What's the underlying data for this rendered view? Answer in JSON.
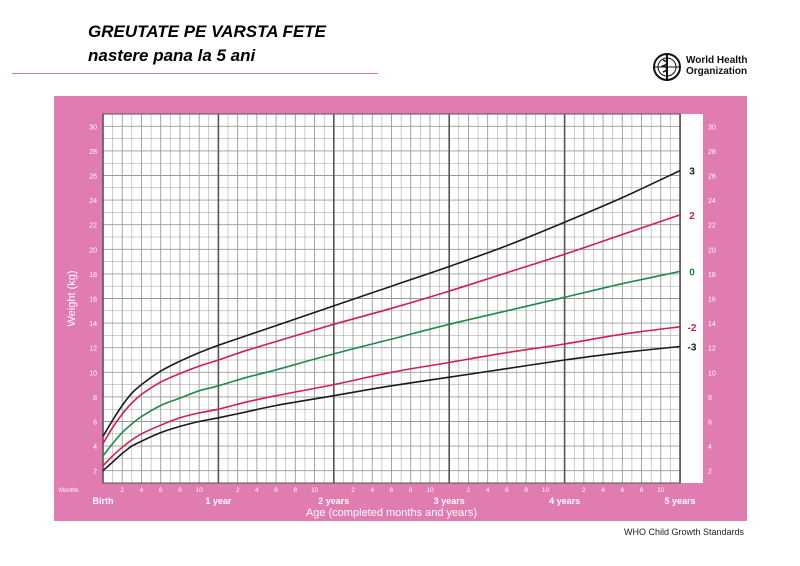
{
  "header": {
    "title": "GREUTATE PE VARSTA FETE",
    "subtitle": "nastere pana la 5 ani"
  },
  "logo": {
    "icon": "who-emblem-icon",
    "name_line1": "World Health",
    "name_line2": "Organization"
  },
  "footer": {
    "note": "WHO Child Growth Standards"
  },
  "colors": {
    "panel": "#e07cb0",
    "plot_bg": "#ffffff",
    "grid": "#9a9a9a",
    "curve_3": "#1a1a1a",
    "curve_2": "#d0204a",
    "curve_0": "#1e8a4a",
    "curve_minus2": "#d0204a",
    "curve_minus3": "#1a1a1a"
  },
  "chart_data": {
    "type": "line",
    "title": "",
    "xlabel": "Age (completed months and years)",
    "ylabel": "Weight (kg)",
    "xlim": [
      0,
      60
    ],
    "ylim": [
      1,
      31
    ],
    "grid": true,
    "months_label": "Months",
    "month_ticks": [
      {
        "m": 2,
        "label": "2"
      },
      {
        "m": 4,
        "label": "4"
      },
      {
        "m": 6,
        "label": "6"
      },
      {
        "m": 8,
        "label": "8"
      },
      {
        "m": 10,
        "label": "10"
      },
      {
        "m": 14,
        "label": "2"
      },
      {
        "m": 16,
        "label": "4"
      },
      {
        "m": 18,
        "label": "6"
      },
      {
        "m": 20,
        "label": "8"
      },
      {
        "m": 22,
        "label": "10"
      },
      {
        "m": 26,
        "label": "2"
      },
      {
        "m": 28,
        "label": "4"
      },
      {
        "m": 30,
        "label": "6"
      },
      {
        "m": 32,
        "label": "8"
      },
      {
        "m": 34,
        "label": "10"
      },
      {
        "m": 38,
        "label": "2"
      },
      {
        "m": 40,
        "label": "4"
      },
      {
        "m": 42,
        "label": "6"
      },
      {
        "m": 44,
        "label": "8"
      },
      {
        "m": 46,
        "label": "10"
      },
      {
        "m": 50,
        "label": "2"
      },
      {
        "m": 52,
        "label": "4"
      },
      {
        "m": 54,
        "label": "6"
      },
      {
        "m": 56,
        "label": "8"
      },
      {
        "m": 58,
        "label": "10"
      }
    ],
    "year_ticks": [
      {
        "m": 0,
        "label": "Birth"
      },
      {
        "m": 12,
        "label": "1 year"
      },
      {
        "m": 24,
        "label": "2 years"
      },
      {
        "m": 36,
        "label": "3 years"
      },
      {
        "m": 48,
        "label": "4 years"
      },
      {
        "m": 60,
        "label": "5 years"
      }
    ],
    "y_ticks": [
      2,
      4,
      6,
      8,
      10,
      12,
      14,
      16,
      18,
      20,
      22,
      24,
      26,
      28,
      30
    ],
    "x_months": [
      0,
      1,
      2,
      3,
      4,
      6,
      8,
      10,
      12,
      15,
      18,
      24,
      30,
      36,
      42,
      48,
      54,
      60
    ],
    "series": [
      {
        "name": "3",
        "values": [
          4.8,
          6.1,
          7.3,
          8.3,
          9.0,
          10.1,
          10.9,
          11.6,
          12.2,
          13.0,
          13.8,
          15.4,
          17.0,
          18.6,
          20.3,
          22.2,
          24.2,
          26.4
        ]
      },
      {
        "name": "2",
        "values": [
          4.2,
          5.5,
          6.6,
          7.5,
          8.2,
          9.2,
          9.9,
          10.5,
          11.0,
          11.8,
          12.5,
          13.9,
          15.2,
          16.6,
          18.1,
          19.6,
          21.2,
          22.8
        ]
      },
      {
        "name": "0",
        "values": [
          3.2,
          4.2,
          5.1,
          5.8,
          6.4,
          7.3,
          7.9,
          8.5,
          8.9,
          9.6,
          10.2,
          11.5,
          12.7,
          13.9,
          15.0,
          16.1,
          17.2,
          18.2
        ]
      },
      {
        "name": "-2",
        "values": [
          2.4,
          3.2,
          3.9,
          4.5,
          5.0,
          5.7,
          6.3,
          6.7,
          7.0,
          7.6,
          8.1,
          9.0,
          10.0,
          10.8,
          11.6,
          12.3,
          13.1,
          13.7
        ]
      },
      {
        "name": "-3",
        "values": [
          2.0,
          2.7,
          3.4,
          4.0,
          4.4,
          5.1,
          5.6,
          6.0,
          6.3,
          6.8,
          7.3,
          8.1,
          8.9,
          9.6,
          10.3,
          11.0,
          11.6,
          12.1
        ]
      }
    ]
  }
}
